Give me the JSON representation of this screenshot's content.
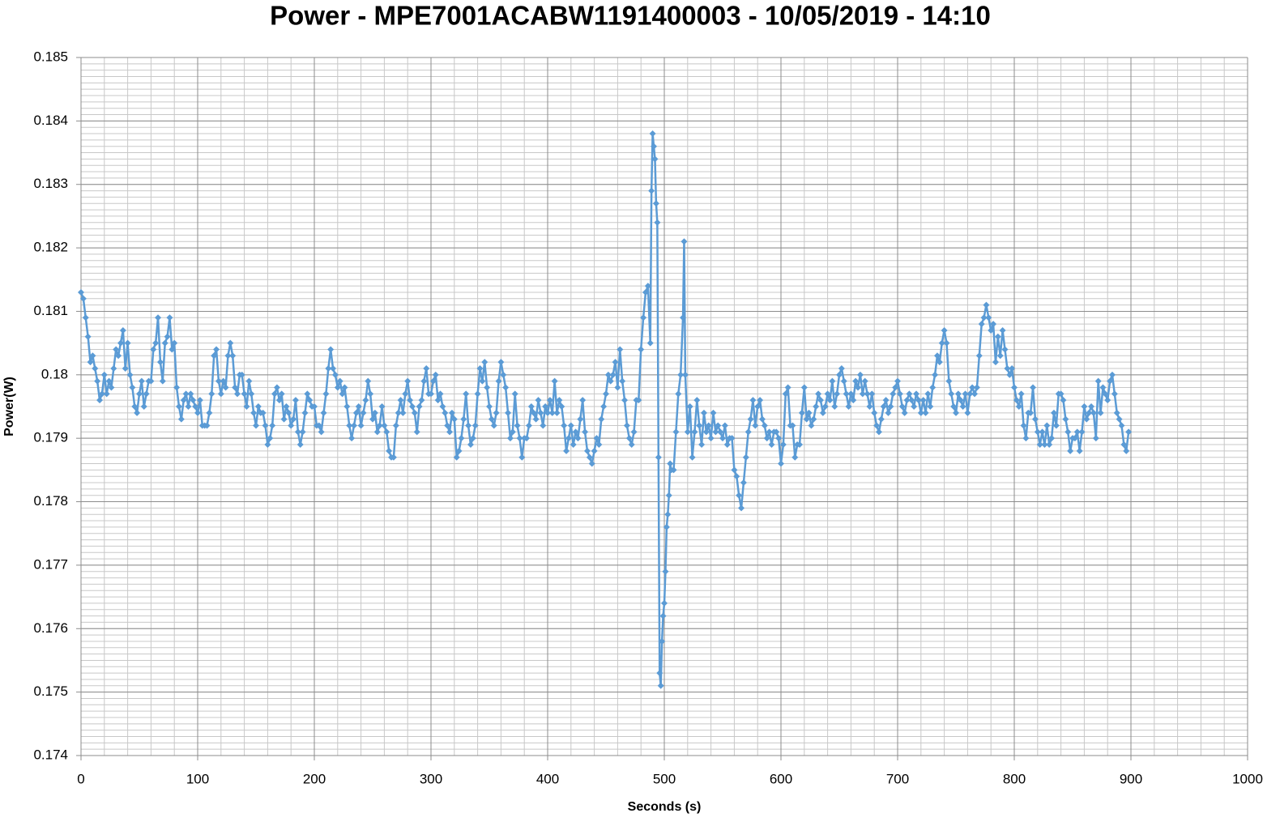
{
  "chart_data": {
    "type": "line",
    "title": "Power - MPE7001ACABW1191400003 - 10/05/2019 - 14:10",
    "x_label": "Seconds (s)",
    "y_label": "Power(W)",
    "xlim": [
      0,
      1000
    ],
    "xticks": [
      0,
      100,
      200,
      300,
      400,
      500,
      600,
      700,
      800,
      900,
      1000
    ],
    "ylim": [
      0.174,
      0.185
    ],
    "yticks": [
      0.174,
      0.175,
      0.176,
      0.177,
      0.178,
      0.179,
      0.18,
      0.181,
      0.182,
      0.183,
      0.184,
      0.185
    ],
    "grid": true,
    "minor_grid_x": 20,
    "minor_grid_y": 0.0001,
    "x": [
      0,
      2,
      4,
      6,
      8,
      10,
      12,
      14,
      16,
      18,
      20,
      22,
      24,
      26,
      28,
      30,
      32,
      34,
      36,
      38,
      40,
      42,
      44,
      46,
      48,
      50,
      52,
      54,
      56,
      58,
      60,
      62,
      64,
      66,
      68,
      70,
      72,
      74,
      76,
      78,
      80,
      82,
      84,
      86,
      88,
      90,
      92,
      94,
      96,
      98,
      100,
      102,
      104,
      106,
      108,
      110,
      112,
      114,
      116,
      118,
      120,
      122,
      124,
      126,
      128,
      130,
      132,
      134,
      136,
      138,
      140,
      142,
      144,
      146,
      148,
      150,
      152,
      154,
      156,
      158,
      160,
      162,
      164,
      166,
      168,
      170,
      172,
      174,
      176,
      178,
      180,
      182,
      184,
      186,
      188,
      190,
      192,
      194,
      196,
      198,
      200,
      202,
      204,
      206,
      208,
      210,
      212,
      214,
      216,
      218,
      220,
      222,
      224,
      226,
      228,
      230,
      232,
      234,
      236,
      238,
      240,
      242,
      244,
      246,
      248,
      250,
      252,
      254,
      256,
      258,
      260,
      262,
      264,
      266,
      268,
      270,
      272,
      274,
      276,
      278,
      280,
      282,
      284,
      286,
      288,
      290,
      292,
      294,
      296,
      298,
      300,
      302,
      304,
      306,
      308,
      310,
      312,
      314,
      316,
      318,
      320,
      322,
      324,
      326,
      328,
      330,
      332,
      334,
      336,
      338,
      340,
      342,
      344,
      346,
      348,
      350,
      352,
      354,
      356,
      358,
      360,
      362,
      364,
      366,
      368,
      370,
      372,
      374,
      376,
      378,
      380,
      382,
      384,
      386,
      388,
      390,
      392,
      394,
      396,
      398,
      400,
      402,
      404,
      406,
      408,
      410,
      412,
      414,
      416,
      418,
      420,
      422,
      424,
      426,
      428,
      430,
      432,
      434,
      436,
      438,
      440,
      442,
      444,
      446,
      448,
      450,
      452,
      454,
      456,
      458,
      460,
      462,
      464,
      466,
      468,
      470,
      472,
      474,
      476,
      478,
      480,
      482,
      484,
      486,
      488,
      489,
      490,
      491,
      492,
      493,
      494,
      495,
      496,
      497,
      498,
      499,
      500,
      501,
      502,
      503,
      504,
      505,
      506,
      508,
      510,
      512,
      514,
      516,
      517,
      518,
      520,
      522,
      524,
      526,
      528,
      530,
      532,
      534,
      536,
      538,
      540,
      542,
      544,
      546,
      548,
      550,
      552,
      554,
      556,
      558,
      560,
      562,
      564,
      566,
      568,
      570,
      572,
      574,
      576,
      578,
      580,
      582,
      584,
      586,
      588,
      590,
      592,
      594,
      596,
      598,
      600,
      602,
      604,
      606,
      608,
      610,
      612,
      614,
      616,
      618,
      620,
      622,
      624,
      626,
      628,
      630,
      632,
      634,
      636,
      638,
      640,
      642,
      644,
      646,
      648,
      650,
      652,
      654,
      656,
      658,
      660,
      662,
      664,
      666,
      668,
      670,
      672,
      674,
      676,
      678,
      680,
      682,
      684,
      686,
      688,
      690,
      692,
      694,
      696,
      698,
      700,
      702,
      704,
      706,
      708,
      710,
      712,
      714,
      716,
      718,
      720,
      722,
      724,
      726,
      728,
      730,
      732,
      734,
      736,
      738,
      740,
      742,
      744,
      746,
      748,
      750,
      752,
      754,
      756,
      758,
      760,
      762,
      764,
      766,
      768,
      770,
      772,
      774,
      776,
      778,
      780,
      782,
      784,
      786,
      788,
      790,
      792,
      794,
      796,
      798,
      800,
      802,
      804,
      806,
      808,
      810,
      812,
      814,
      816,
      818,
      820,
      822,
      824,
      826,
      828,
      830,
      832,
      834,
      836,
      838,
      840,
      842,
      844,
      846,
      848,
      850,
      852,
      854,
      856,
      858,
      860,
      862,
      864,
      866,
      868,
      870,
      872,
      874,
      876,
      878,
      880,
      882,
      884,
      886,
      888,
      890,
      892,
      894,
      896,
      898
    ],
    "series": [
      {
        "color": "#5b9bd5",
        "values": [
          0.1813,
          0.1812,
          0.1809,
          0.1806,
          0.1802,
          0.1803,
          0.1801,
          0.1799,
          0.1796,
          0.1797,
          0.18,
          0.1797,
          0.1799,
          0.1798,
          0.1801,
          0.1804,
          0.1803,
          0.1805,
          0.1807,
          0.1801,
          0.1805,
          0.18,
          0.1798,
          0.1795,
          0.1794,
          0.1797,
          0.1799,
          0.1795,
          0.1797,
          0.1799,
          0.1799,
          0.1804,
          0.1805,
          0.1809,
          0.1802,
          0.1799,
          0.1805,
          0.1806,
          0.1809,
          0.1804,
          0.1805,
          0.1798,
          0.1795,
          0.1793,
          0.1796,
          0.1797,
          0.1795,
          0.1797,
          0.1796,
          0.1795,
          0.1794,
          0.1796,
          0.1792,
          0.1792,
          0.1792,
          0.1794,
          0.1797,
          0.1803,
          0.1804,
          0.1799,
          0.1797,
          0.1799,
          0.1798,
          0.1803,
          0.1805,
          0.1803,
          0.1798,
          0.1797,
          0.18,
          0.18,
          0.1797,
          0.1795,
          0.1799,
          0.1797,
          0.1794,
          0.1792,
          0.1795,
          0.1794,
          0.1794,
          0.1792,
          0.1789,
          0.179,
          0.1792,
          0.1797,
          0.1798,
          0.1796,
          0.1797,
          0.1793,
          0.1795,
          0.1794,
          0.1792,
          0.1793,
          0.1796,
          0.1791,
          0.1789,
          0.1791,
          0.1794,
          0.1797,
          0.1796,
          0.1795,
          0.1795,
          0.1792,
          0.1792,
          0.1791,
          0.1794,
          0.1797,
          0.1801,
          0.1804,
          0.1801,
          0.18,
          0.1798,
          0.1799,
          0.1797,
          0.1798,
          0.1795,
          0.1792,
          0.179,
          0.1792,
          0.1794,
          0.1795,
          0.1792,
          0.1794,
          0.1796,
          0.1799,
          0.1797,
          0.1793,
          0.1794,
          0.1791,
          0.1792,
          0.1795,
          0.1792,
          0.1791,
          0.1788,
          0.1787,
          0.1787,
          0.1792,
          0.1794,
          0.1796,
          0.1794,
          0.1797,
          0.1799,
          0.1796,
          0.1795,
          0.1794,
          0.1791,
          0.1795,
          0.1796,
          0.1799,
          0.1801,
          0.1797,
          0.1797,
          0.1799,
          0.18,
          0.1796,
          0.1797,
          0.1795,
          0.1794,
          0.1792,
          0.1791,
          0.1794,
          0.1793,
          0.1787,
          0.1788,
          0.179,
          0.1793,
          0.1797,
          0.1792,
          0.1789,
          0.179,
          0.1792,
          0.1797,
          0.1801,
          0.1799,
          0.1802,
          0.1798,
          0.1795,
          0.1793,
          0.1792,
          0.1794,
          0.1799,
          0.1802,
          0.18,
          0.1798,
          0.1794,
          0.179,
          0.1791,
          0.1797,
          0.1792,
          0.179,
          0.1787,
          0.179,
          0.179,
          0.1792,
          0.1795,
          0.1794,
          0.1793,
          0.1796,
          0.1794,
          0.1792,
          0.1795,
          0.1794,
          0.1796,
          0.1794,
          0.1799,
          0.1794,
          0.1796,
          0.1795,
          0.1792,
          0.1788,
          0.179,
          0.1792,
          0.1789,
          0.1791,
          0.179,
          0.1793,
          0.1796,
          0.1791,
          0.1788,
          0.1787,
          0.1786,
          0.1788,
          0.179,
          0.1789,
          0.1793,
          0.1795,
          0.1797,
          0.18,
          0.1799,
          0.18,
          0.1802,
          0.1798,
          0.1804,
          0.1799,
          0.1796,
          0.1792,
          0.179,
          0.1789,
          0.1791,
          0.1796,
          0.1796,
          0.1804,
          0.1809,
          0.1813,
          0.1814,
          0.1805,
          0.1829,
          0.1838,
          0.1836,
          0.1834,
          0.1827,
          0.1824,
          0.1787,
          0.1753,
          0.1751,
          0.1758,
          0.1762,
          0.1764,
          0.1769,
          0.1776,
          0.1778,
          0.1781,
          0.1786,
          0.1785,
          0.1785,
          0.1791,
          0.1797,
          0.18,
          0.1809,
          0.1821,
          0.18,
          0.1791,
          0.1795,
          0.1787,
          0.1791,
          0.1796,
          0.1792,
          0.1789,
          0.1794,
          0.1791,
          0.1792,
          0.179,
          0.1794,
          0.1791,
          0.1792,
          0.1791,
          0.179,
          0.1792,
          0.1789,
          0.179,
          0.179,
          0.1785,
          0.1784,
          0.1781,
          0.1779,
          0.1783,
          0.1787,
          0.1791,
          0.1793,
          0.1796,
          0.1792,
          0.1795,
          0.1796,
          0.1793,
          0.1792,
          0.179,
          0.1791,
          0.1789,
          0.1791,
          0.1791,
          0.179,
          0.1786,
          0.1789,
          0.1797,
          0.1798,
          0.1792,
          0.1792,
          0.1787,
          0.1789,
          0.1789,
          0.1794,
          0.1798,
          0.1793,
          0.1794,
          0.1792,
          0.1793,
          0.1795,
          0.1797,
          0.1796,
          0.1794,
          0.1795,
          0.1797,
          0.1796,
          0.1799,
          0.1795,
          0.1797,
          0.18,
          0.1801,
          0.1799,
          0.1797,
          0.1795,
          0.1797,
          0.1796,
          0.1799,
          0.1798,
          0.18,
          0.1797,
          0.1799,
          0.1797,
          0.1795,
          0.1797,
          0.1794,
          0.1792,
          0.1791,
          0.1793,
          0.1795,
          0.1796,
          0.1794,
          0.1795,
          0.1797,
          0.1798,
          0.1799,
          0.1797,
          0.1795,
          0.1794,
          0.1796,
          0.1797,
          0.1796,
          0.1795,
          0.1797,
          0.1796,
          0.1794,
          0.1796,
          0.1794,
          0.1797,
          0.1795,
          0.1798,
          0.18,
          0.1803,
          0.1802,
          0.1805,
          0.1807,
          0.1805,
          0.1799,
          0.1797,
          0.1795,
          0.1794,
          0.1797,
          0.1796,
          0.1795,
          0.1797,
          0.1794,
          0.1797,
          0.1798,
          0.1797,
          0.1798,
          0.1803,
          0.1808,
          0.1809,
          0.1811,
          0.1809,
          0.1807,
          0.1808,
          0.1802,
          0.1806,
          0.1803,
          0.1807,
          0.1804,
          0.1801,
          0.18,
          0.1801,
          0.1798,
          0.1796,
          0.1795,
          0.1797,
          0.1792,
          0.179,
          0.1794,
          0.1794,
          0.1798,
          0.1793,
          0.1791,
          0.1789,
          0.1791,
          0.1789,
          0.1792,
          0.1789,
          0.179,
          0.1794,
          0.1792,
          0.1797,
          0.1797,
          0.1796,
          0.1793,
          0.1791,
          0.1788,
          0.179,
          0.179,
          0.1791,
          0.1788,
          0.1791,
          0.1795,
          0.1793,
          0.1794,
          0.1795,
          0.1794,
          0.179,
          0.1799,
          0.1794,
          0.1798,
          0.1797,
          0.1796,
          0.1799,
          0.18,
          0.1797,
          0.1794,
          0.1793,
          0.1792,
          0.1789,
          0.1788,
          0.1791
        ]
      }
    ]
  }
}
